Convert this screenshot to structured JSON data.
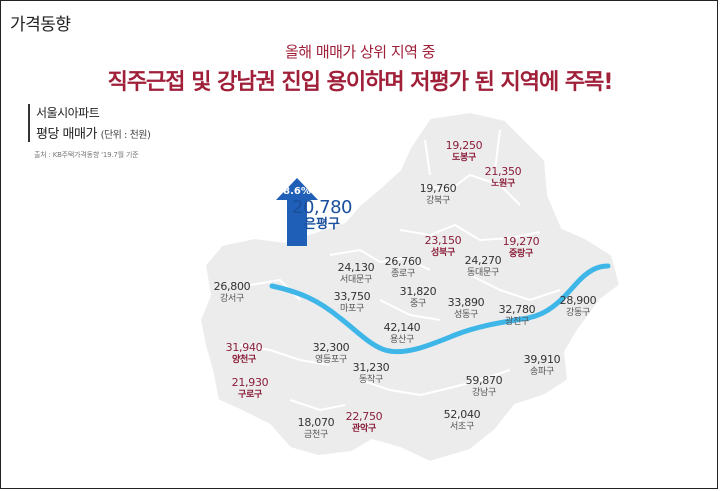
{
  "header": {
    "corner_title": "가격동향",
    "subtitle": "올해 매매가 상위 지역 중",
    "headline": "직주근접 및 강남권 진입 용이하며 저평가 된 지역에 주목!"
  },
  "legend": {
    "line1": "서울시아파트",
    "line2": "평당 매매가",
    "unit": "(단위 : 천원)",
    "source": "출처 : KB주택가격동향 '19.7월 기준"
  },
  "featured": {
    "district": "은평구",
    "value": "20,780",
    "change": "8.6%",
    "arrow_color": "#1f5fb8"
  },
  "colors": {
    "highlight": "#8a1e3a",
    "river": "#3fb6e8",
    "map_fill": "#ececec"
  },
  "districts": [
    {
      "name": "도봉구",
      "value": "19,250",
      "highlight": true
    },
    {
      "name": "노원구",
      "value": "21,350",
      "highlight": true
    },
    {
      "name": "강북구",
      "value": "19,760",
      "highlight": false
    },
    {
      "name": "성북구",
      "value": "23,150",
      "highlight": true
    },
    {
      "name": "중랑구",
      "value": "19,270",
      "highlight": true
    },
    {
      "name": "동대문구",
      "value": "24,270",
      "highlight": false
    },
    {
      "name": "종로구",
      "value": "26,760",
      "highlight": false
    },
    {
      "name": "서대문구",
      "value": "24,130",
      "highlight": false
    },
    {
      "name": "중구",
      "value": "31,820",
      "highlight": false
    },
    {
      "name": "강서구",
      "value": "26,800",
      "highlight": false
    },
    {
      "name": "마포구",
      "value": "33,750",
      "highlight": false
    },
    {
      "name": "성동구",
      "value": "33,890",
      "highlight": false
    },
    {
      "name": "광진구",
      "value": "32,780",
      "highlight": false
    },
    {
      "name": "강동구",
      "value": "28,900",
      "highlight": false
    },
    {
      "name": "용산구",
      "value": "42,140",
      "highlight": false
    },
    {
      "name": "양천구",
      "value": "31,940",
      "highlight": true
    },
    {
      "name": "영등포구",
      "value": "32,300",
      "highlight": false
    },
    {
      "name": "송파구",
      "value": "39,910",
      "highlight": false
    },
    {
      "name": "동작구",
      "value": "31,230",
      "highlight": false
    },
    {
      "name": "구로구",
      "value": "21,930",
      "highlight": true
    },
    {
      "name": "강남구",
      "value": "59,870",
      "highlight": false
    },
    {
      "name": "금천구",
      "value": "18,070",
      "highlight": false
    },
    {
      "name": "관악구",
      "value": "22,750",
      "highlight": true
    },
    {
      "name": "서초구",
      "value": "52,040",
      "highlight": false
    }
  ]
}
